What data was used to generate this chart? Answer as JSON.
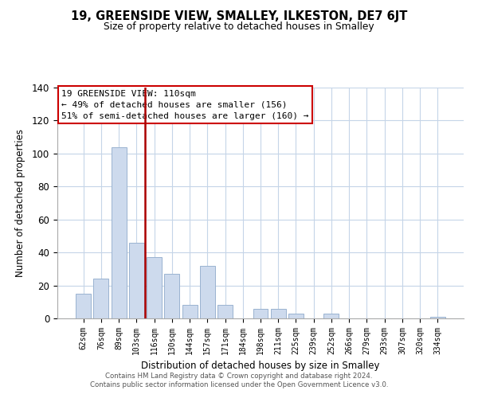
{
  "title": "19, GREENSIDE VIEW, SMALLEY, ILKESTON, DE7 6JT",
  "subtitle": "Size of property relative to detached houses in Smalley",
  "xlabel": "Distribution of detached houses by size in Smalley",
  "ylabel": "Number of detached properties",
  "bar_labels": [
    "62sqm",
    "76sqm",
    "89sqm",
    "103sqm",
    "116sqm",
    "130sqm",
    "144sqm",
    "157sqm",
    "171sqm",
    "184sqm",
    "198sqm",
    "211sqm",
    "225sqm",
    "239sqm",
    "252sqm",
    "266sqm",
    "279sqm",
    "293sqm",
    "307sqm",
    "320sqm",
    "334sqm"
  ],
  "bar_values": [
    15,
    24,
    104,
    46,
    37,
    27,
    8,
    32,
    8,
    0,
    6,
    6,
    3,
    0,
    3,
    0,
    0,
    0,
    0,
    0,
    1
  ],
  "bar_color": "#cddaed",
  "bar_edge_color": "#9ab3d0",
  "vline_x_idx": 3,
  "vline_color": "#aa0000",
  "ylim": [
    0,
    140
  ],
  "yticks": [
    0,
    20,
    40,
    60,
    80,
    100,
    120,
    140
  ],
  "annotation_title": "19 GREENSIDE VIEW: 110sqm",
  "annotation_line1": "← 49% of detached houses are smaller (156)",
  "annotation_line2": "51% of semi-detached houses are larger (160) →",
  "footer1": "Contains HM Land Registry data © Crown copyright and database right 2024.",
  "footer2": "Contains public sector information licensed under the Open Government Licence v3.0.",
  "background_color": "#ffffff",
  "grid_color": "#c5d5e8"
}
